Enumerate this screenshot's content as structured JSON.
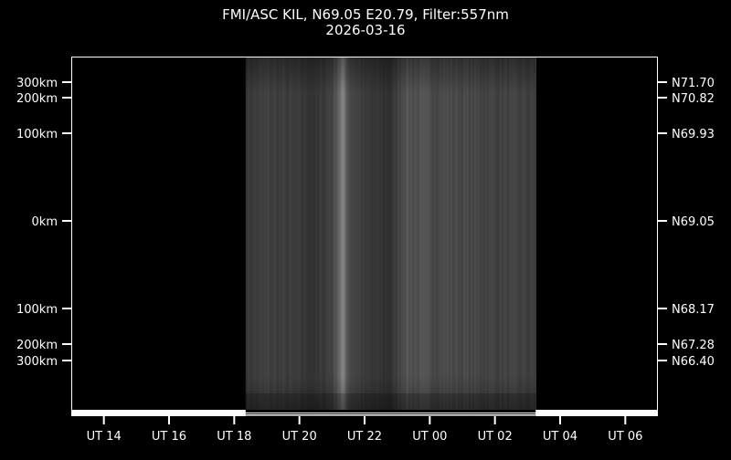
{
  "chart_data": {
    "type": "heatmap",
    "title": "FMI/ASC KIL, N69.05 E20.79, Filter:557nm",
    "subtitle": "2026-03-16",
    "x_range_hours": [
      13.0,
      31.0
    ],
    "data_coverage_hours": [
      18.35,
      27.25
    ],
    "x_ticks": [
      {
        "hour": 14,
        "label": "UT 14"
      },
      {
        "hour": 16,
        "label": "UT 16"
      },
      {
        "hour": 18,
        "label": "UT 18"
      },
      {
        "hour": 20,
        "label": "UT 20"
      },
      {
        "hour": 22,
        "label": "UT 22"
      },
      {
        "hour": 24,
        "label": "UT 00"
      },
      {
        "hour": 26,
        "label": "UT 02"
      },
      {
        "hour": 28,
        "label": "UT 04"
      },
      {
        "hour": 30,
        "label": "UT 06"
      }
    ],
    "y_ticks_left": [
      {
        "km": 300,
        "side": "north",
        "label": "300km"
      },
      {
        "km": 200,
        "side": "north",
        "label": "200km"
      },
      {
        "km": 100,
        "side": "north",
        "label": "100km"
      },
      {
        "km": 0,
        "side": "zenith",
        "label": "0km"
      },
      {
        "km": 100,
        "side": "south",
        "label": "100km"
      },
      {
        "km": 200,
        "side": "south",
        "label": "200km"
      },
      {
        "km": 300,
        "side": "south",
        "label": "300km"
      }
    ],
    "y_ticks_right": [
      "N71.70",
      "N70.82",
      "N69.93",
      "N69.05",
      "N68.17",
      "N67.28",
      "N66.40"
    ],
    "brightness_profile": [
      [
        18.35,
        0.22
      ],
      [
        19.0,
        0.25
      ],
      [
        19.7,
        0.23
      ],
      [
        20.5,
        0.2
      ],
      [
        21.0,
        0.27
      ],
      [
        21.3,
        0.5
      ],
      [
        21.5,
        0.3
      ],
      [
        22.0,
        0.22
      ],
      [
        22.8,
        0.19
      ],
      [
        23.2,
        0.33
      ],
      [
        24.0,
        0.3
      ],
      [
        25.0,
        0.28
      ],
      [
        26.0,
        0.26
      ],
      [
        27.25,
        0.24
      ]
    ],
    "colors": {
      "background": "#000000",
      "foreground": "#ffffff",
      "colormap": "grayscale"
    }
  }
}
